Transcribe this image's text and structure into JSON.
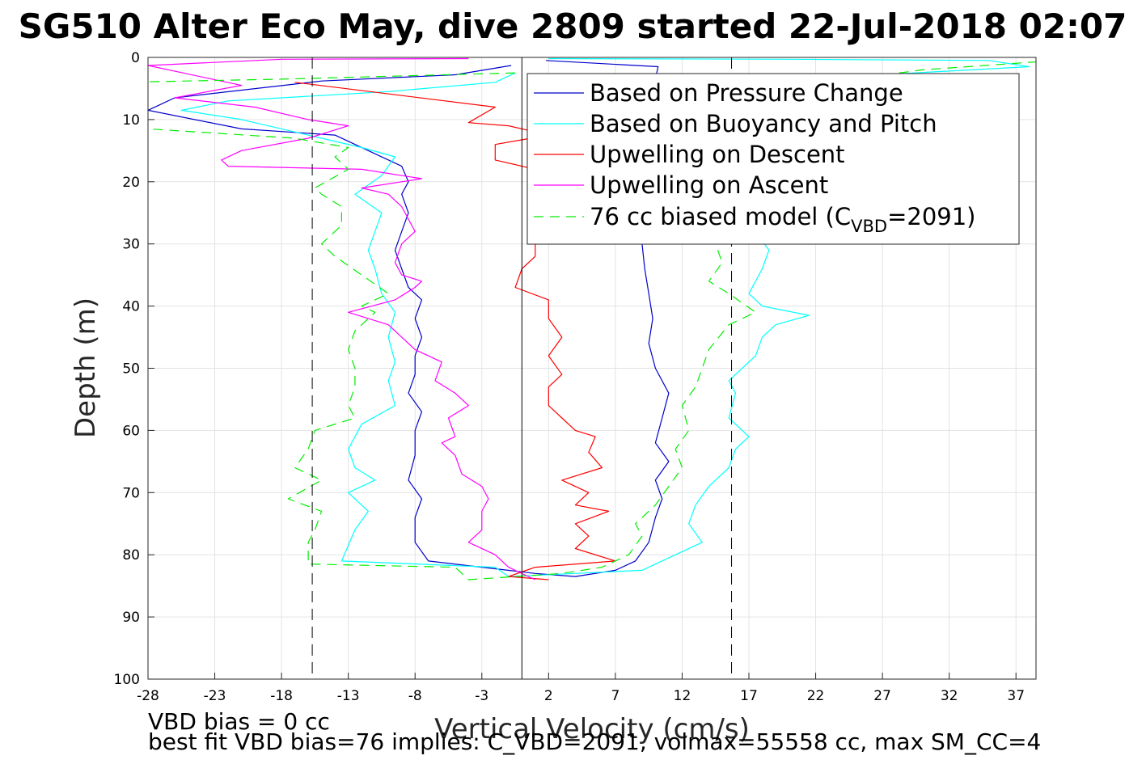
{
  "chart_data": {
    "type": "line",
    "title": "SG510 Alter Eco May, dive 2809 started 22-Jul-2018 02:07",
    "xlabel": "Vertical Velocity (cm/s)",
    "ylabel": "Depth (m)",
    "xlim": [
      -28,
      38.5
    ],
    "ylim": [
      0,
      100
    ],
    "y_reversed": true,
    "grid": true,
    "x_ticks": [
      -28,
      -23,
      -18,
      -13,
      -8,
      -3,
      2,
      7,
      12,
      17,
      22,
      27,
      32,
      37
    ],
    "y_ticks": [
      0,
      10,
      20,
      30,
      40,
      50,
      60,
      70,
      80,
      90,
      100
    ],
    "legend_location": "top-right",
    "colors": {
      "pressure": "#0000cc",
      "buoyancy": "#00ffff",
      "upwelling_descent": "#ff0000",
      "upwelling_ascent": "#ff00ff",
      "model": "#00ee00",
      "reference_lines": "#000000"
    },
    "legend": [
      {
        "key": "pressure",
        "label": "Based on Pressure Change"
      },
      {
        "key": "buoyancy",
        "label": "Based on Buoyancy and Pitch"
      },
      {
        "key": "upwelling_descent",
        "label": "Upwelling on Descent"
      },
      {
        "key": "upwelling_ascent",
        "label": "Upwelling on Ascent"
      },
      {
        "key": "model",
        "label_prefix": "76 cc biased model (C",
        "label_sub": "VBD",
        "label_suffix": "=2091)"
      }
    ],
    "reference_lines": [
      {
        "x": -15.7,
        "style": "dashed"
      },
      {
        "x": 0,
        "style": "solid"
      },
      {
        "x": 15.7,
        "style": "dashed"
      }
    ],
    "series": [
      {
        "key": "pressure",
        "name": "Based on Pressure Change",
        "style": "solid",
        "points": [
          [
            -0.8,
            1.3
          ],
          [
            -5,
            2.8
          ],
          [
            -15,
            3.8
          ],
          [
            -26,
            6.5
          ],
          [
            -28,
            8.5
          ],
          [
            -21,
            11.5
          ],
          [
            -14,
            12.5
          ],
          [
            -11,
            15.5
          ],
          [
            -9,
            17.5
          ],
          [
            -8.5,
            20
          ],
          [
            -9,
            22
          ],
          [
            -8.5,
            25
          ],
          [
            -9,
            28
          ],
          [
            -9.5,
            31
          ],
          [
            -9,
            34
          ],
          [
            -8.5,
            37
          ],
          [
            -7.5,
            39
          ],
          [
            -8,
            42
          ],
          [
            -7.5,
            45
          ],
          [
            -8,
            48
          ],
          [
            -8,
            51
          ],
          [
            -8.5,
            54
          ],
          [
            -7.5,
            57
          ],
          [
            -8,
            60
          ],
          [
            -8,
            64
          ],
          [
            -8.5,
            68
          ],
          [
            -7.5,
            71
          ],
          [
            -8,
            74
          ],
          [
            -8,
            78
          ],
          [
            -7,
            81
          ],
          [
            -3,
            82
          ],
          [
            1,
            83
          ],
          [
            4,
            83.5
          ],
          [
            7,
            82.5
          ],
          [
            8.5,
            81
          ],
          [
            9.5,
            78
          ],
          [
            10,
            74
          ],
          [
            10.5,
            71
          ],
          [
            10,
            68
          ],
          [
            11,
            65
          ],
          [
            10,
            62
          ],
          [
            10.5,
            58
          ],
          [
            11,
            54
          ],
          [
            10,
            50
          ],
          [
            9.5,
            46
          ],
          [
            9.8,
            42
          ],
          [
            9.5,
            38
          ],
          [
            9.2,
            34
          ],
          [
            9,
            30
          ],
          [
            9.5,
            26
          ],
          [
            10,
            22
          ],
          [
            9.5,
            18
          ],
          [
            10.2,
            14
          ],
          [
            10,
            10
          ],
          [
            9.8,
            6
          ],
          [
            10,
            3.5
          ],
          [
            10.2,
            1.5
          ],
          [
            1.8,
            0.5
          ]
        ]
      },
      {
        "key": "buoyancy",
        "name": "Based on Buoyancy and Pitch",
        "style": "solid",
        "points": [
          [
            -0.5,
            2.5
          ],
          [
            -2,
            4
          ],
          [
            -10,
            5.5
          ],
          [
            -22,
            7
          ],
          [
            -25.5,
            8.5
          ],
          [
            -21,
            10
          ],
          [
            -16,
            12.5
          ],
          [
            -12,
            14.5
          ],
          [
            -9.5,
            16
          ],
          [
            -10.5,
            19
          ],
          [
            -12.5,
            22
          ],
          [
            -10.5,
            25
          ],
          [
            -11,
            28
          ],
          [
            -11.5,
            31
          ],
          [
            -11,
            34
          ],
          [
            -10.5,
            38
          ],
          [
            -9.5,
            41
          ],
          [
            -10,
            45
          ],
          [
            -9.5,
            49
          ],
          [
            -10,
            52
          ],
          [
            -9.5,
            56
          ],
          [
            -12,
            59
          ],
          [
            -13,
            63
          ],
          [
            -12.5,
            66
          ],
          [
            -11,
            68
          ],
          [
            -13,
            70
          ],
          [
            -11.5,
            73
          ],
          [
            -12.5,
            76
          ],
          [
            -13.5,
            81
          ],
          [
            -2,
            82
          ],
          [
            -1,
            83.5
          ],
          [
            4,
            83
          ],
          [
            9,
            82.5
          ],
          [
            13.5,
            78
          ],
          [
            12.5,
            75
          ],
          [
            13,
            72
          ],
          [
            14,
            69
          ],
          [
            15.5,
            66
          ],
          [
            16,
            63
          ],
          [
            17,
            61
          ],
          [
            15.5,
            58
          ],
          [
            16,
            54
          ],
          [
            15.5,
            52
          ],
          [
            17.5,
            48
          ],
          [
            18,
            45
          ],
          [
            19,
            43
          ],
          [
            21.5,
            41.5
          ],
          [
            18,
            40
          ],
          [
            17,
            38
          ],
          [
            18,
            34
          ],
          [
            18.5,
            31
          ],
          [
            17.5,
            28
          ],
          [
            18,
            24
          ],
          [
            19,
            20
          ],
          [
            19,
            16
          ],
          [
            18,
            13
          ],
          [
            17.5,
            10
          ],
          [
            16,
            6
          ],
          [
            25,
            3
          ],
          [
            38,
            1.5
          ],
          [
            35,
            0.5
          ],
          [
            20,
            0.3
          ],
          [
            2,
            0.2
          ]
        ]
      },
      {
        "key": "upwelling_descent",
        "name": "Upwelling on Descent",
        "style": "solid",
        "points": [
          [
            -17,
            4
          ],
          [
            -2,
            8
          ],
          [
            -4,
            10.5
          ],
          [
            -1,
            11
          ],
          [
            2,
            12.5
          ],
          [
            -2,
            14
          ],
          [
            -2,
            16.5
          ],
          [
            1,
            18
          ],
          [
            2,
            20
          ],
          [
            1,
            23
          ],
          [
            2,
            25
          ],
          [
            2,
            28
          ],
          [
            1,
            30
          ],
          [
            1,
            32
          ],
          [
            0,
            34
          ],
          [
            -0.5,
            37
          ],
          [
            2,
            39
          ],
          [
            2,
            42
          ],
          [
            3,
            45
          ],
          [
            2,
            48
          ],
          [
            3,
            51
          ],
          [
            2,
            53
          ],
          [
            2,
            56
          ],
          [
            3,
            58
          ],
          [
            4,
            60
          ],
          [
            5.5,
            61
          ],
          [
            5,
            63.5
          ],
          [
            6,
            66
          ],
          [
            3,
            68
          ],
          [
            5,
            70
          ],
          [
            4,
            72
          ],
          [
            6.5,
            73
          ],
          [
            4,
            75
          ],
          [
            5,
            77
          ],
          [
            4,
            79
          ],
          [
            7,
            81
          ],
          [
            1,
            82
          ],
          [
            -1,
            83.5
          ],
          [
            2,
            84
          ]
        ]
      },
      {
        "key": "upwelling_ascent",
        "name": "Upwelling on Ascent",
        "style": "solid",
        "points": [
          [
            -4,
            0.2
          ],
          [
            -18,
            0.3
          ],
          [
            -28,
            1.3
          ],
          [
            -21,
            4.5
          ],
          [
            -26,
            6.5
          ],
          [
            -20,
            8
          ],
          [
            -16,
            10
          ],
          [
            -13,
            11
          ],
          [
            -16,
            13
          ],
          [
            -21,
            15
          ],
          [
            -22.5,
            16.5
          ],
          [
            -22,
            17.5
          ],
          [
            -12,
            18
          ],
          [
            -7.5,
            19.5
          ],
          [
            -12,
            21
          ],
          [
            -10,
            22
          ],
          [
            -9,
            24
          ],
          [
            -8,
            28
          ],
          [
            -9,
            30
          ],
          [
            -9.5,
            33
          ],
          [
            -9,
            35
          ],
          [
            -7.5,
            36
          ],
          [
            -8,
            37
          ],
          [
            -9.5,
            39
          ],
          [
            -13,
            41
          ],
          [
            -10,
            43
          ],
          [
            -9,
            45
          ],
          [
            -8,
            47
          ],
          [
            -6,
            49
          ],
          [
            -6.5,
            52
          ],
          [
            -5,
            54
          ],
          [
            -4,
            56
          ],
          [
            -5.5,
            58
          ],
          [
            -5,
            61
          ],
          [
            -6,
            62
          ],
          [
            -5,
            64
          ],
          [
            -4.5,
            67
          ],
          [
            -3,
            69
          ],
          [
            -2.5,
            71
          ],
          [
            -3,
            73
          ],
          [
            -3,
            76
          ],
          [
            -4,
            78
          ],
          [
            -2,
            80
          ],
          [
            -1,
            82
          ],
          [
            1,
            84
          ]
        ]
      },
      {
        "key": "model",
        "name": "76 cc biased model (C_VBD=2091)",
        "style": "dashed",
        "points": [
          [
            -0.5,
            2.5
          ],
          [
            -18,
            3.5
          ],
          [
            -30,
            4
          ],
          [
            -28,
            11.5
          ],
          [
            -17,
            13
          ],
          [
            -13,
            14.5
          ],
          [
            -14,
            16
          ],
          [
            -13,
            18
          ],
          [
            -15.5,
            21
          ],
          [
            -15,
            22
          ],
          [
            -13.5,
            24
          ],
          [
            -13.5,
            27
          ],
          [
            -15,
            30
          ],
          [
            -14,
            32
          ],
          [
            -12,
            35
          ],
          [
            -10,
            38
          ],
          [
            -12,
            40
          ],
          [
            -11,
            41
          ],
          [
            -12.5,
            44
          ],
          [
            -13,
            47
          ],
          [
            -12.5,
            50
          ],
          [
            -12.5,
            53
          ],
          [
            -13,
            56
          ],
          [
            -12.5,
            58
          ],
          [
            -15.5,
            60
          ],
          [
            -16,
            63
          ],
          [
            -17,
            66
          ],
          [
            -15,
            68
          ],
          [
            -17.5,
            71
          ],
          [
            -15,
            73
          ],
          [
            -15.5,
            76
          ],
          [
            -16,
            78
          ],
          [
            -16,
            81.5
          ],
          [
            -5,
            82
          ],
          [
            -4,
            84
          ],
          [
            3,
            83
          ],
          [
            6,
            82
          ],
          [
            8,
            80
          ],
          [
            9,
            77
          ],
          [
            8.5,
            75
          ],
          [
            10,
            72
          ],
          [
            11,
            69
          ],
          [
            12,
            66
          ],
          [
            11.5,
            63
          ],
          [
            12.5,
            60
          ],
          [
            12,
            56
          ],
          [
            13,
            53
          ],
          [
            13.5,
            50
          ],
          [
            14,
            47
          ],
          [
            15.5,
            43
          ],
          [
            17.5,
            41
          ],
          [
            15.5,
            38
          ],
          [
            14,
            36
          ],
          [
            15,
            33
          ],
          [
            14.5,
            30
          ],
          [
            16,
            27
          ],
          [
            15,
            24
          ],
          [
            16,
            20
          ],
          [
            14.5,
            17
          ],
          [
            16,
            13
          ],
          [
            14,
            10
          ],
          [
            16,
            6
          ],
          [
            30,
            2
          ],
          [
            40,
            0.5
          ]
        ]
      }
    ]
  },
  "footnotes": {
    "line1": "VBD bias = 0 cc",
    "line2": "best fit VBD bias=76 implies: C_VBD=2091, volmax=55558 cc, max SM_CC=4"
  }
}
